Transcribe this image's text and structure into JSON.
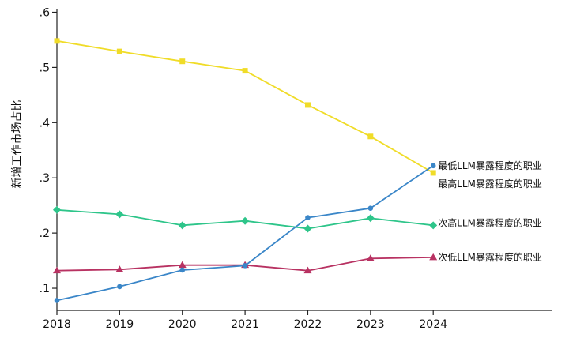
{
  "chart_data": {
    "type": "line",
    "title": "",
    "xlabel": "",
    "ylabel": "新增工作市场占比",
    "x": [
      2018,
      2019,
      2020,
      2021,
      2022,
      2023,
      2024
    ],
    "xlim": [
      2018,
      2025.9
    ],
    "ylim": [
      0.06,
      0.605
    ],
    "yticks": [
      0.1,
      0.2,
      0.3,
      0.4,
      0.5,
      0.6
    ],
    "ytick_labels": [
      ".1",
      ".2",
      ".3",
      ".4",
      ".5",
      ".6"
    ],
    "xtick_labels": [
      "2018",
      "2019",
      "2020",
      "2021",
      "2022",
      "2023",
      "2024"
    ],
    "grid": false,
    "legend": "labels at line ends",
    "series": [
      {
        "name": "最高LLM暴露程度的职业",
        "color": "#f0dc28",
        "marker": "square",
        "values": [
          0.548,
          0.529,
          0.511,
          0.494,
          0.432,
          0.375,
          0.309
        ]
      },
      {
        "name": "次高LLM暴露程度的职业",
        "color": "#2ec58a",
        "marker": "diamond",
        "values": [
          0.242,
          0.234,
          0.214,
          0.222,
          0.208,
          0.227,
          0.214
        ]
      },
      {
        "name": "次低LLM暴露程度的职业",
        "color": "#b83262",
        "marker": "triangle",
        "values": [
          0.132,
          0.134,
          0.142,
          0.142,
          0.132,
          0.154,
          0.156
        ]
      },
      {
        "name": "最低LLM暴露程度的职业",
        "color": "#3a86c8",
        "marker": "circle",
        "values": [
          0.078,
          0.103,
          0.133,
          0.141,
          0.228,
          0.245,
          0.322
        ]
      }
    ]
  }
}
